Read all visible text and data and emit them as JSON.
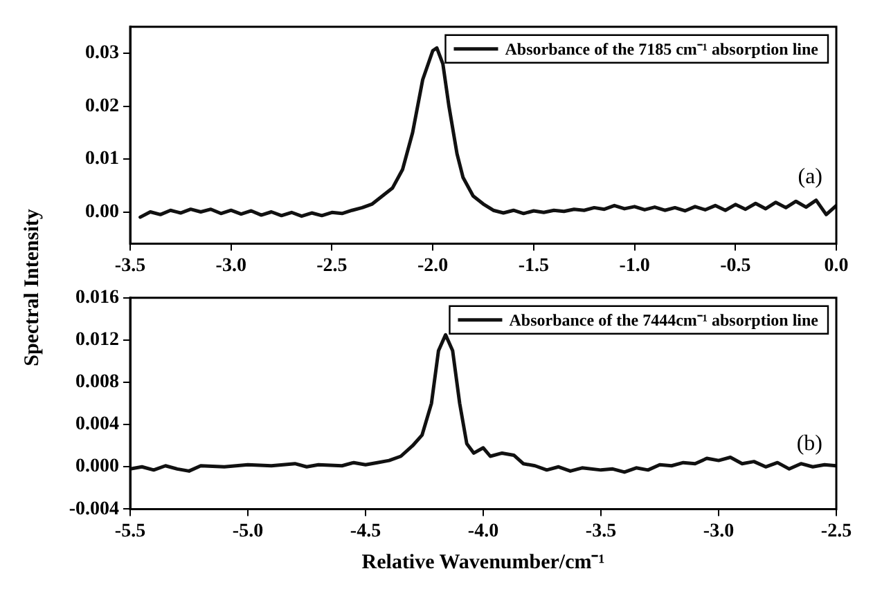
{
  "chart_data": [
    {
      "type": "line",
      "ylabel": "Spectral Intensity",
      "annotations": [
        "(a)"
      ],
      "legend": "top right",
      "xlim": [
        -3.5,
        0.0
      ],
      "xticks": [
        {
          "value": -3.5,
          "label": "-3.5"
        },
        {
          "value": -3.0,
          "label": "-3.0"
        },
        {
          "value": -2.5,
          "label": "-2.5"
        },
        {
          "value": -2.0,
          "label": "-2.0"
        },
        {
          "value": -1.5,
          "label": "-1.5"
        },
        {
          "value": -1.0,
          "label": "-1.0"
        },
        {
          "value": -0.5,
          "label": "-0.5"
        },
        {
          "value": 0.0,
          "label": "0.0"
        }
      ],
      "ylim": [
        -0.006,
        0.035
      ],
      "yticks": [
        {
          "value": 0,
          "label": "0.00"
        },
        {
          "value": 0.01,
          "label": "0.01"
        },
        {
          "value": 0.02,
          "label": "0.02"
        },
        {
          "value": 0.03,
          "label": "0.03"
        }
      ],
      "series": [
        {
          "name": "Absorbance of the 7185 cm⁻¹ absorption line",
          "color": "#111111",
          "x": [
            -3.45,
            -3.4,
            -3.35,
            -3.3,
            -3.25,
            -3.2,
            -3.15,
            -3.1,
            -3.05,
            -3.0,
            -2.95,
            -2.9,
            -2.85,
            -2.8,
            -2.75,
            -2.7,
            -2.65,
            -2.6,
            -2.55,
            -2.5,
            -2.45,
            -2.4,
            -2.35,
            -2.3,
            -2.25,
            -2.2,
            -2.15,
            -2.1,
            -2.05,
            -2.0,
            -1.98,
            -1.95,
            -1.92,
            -1.88,
            -1.85,
            -1.8,
            -1.75,
            -1.7,
            -1.65,
            -1.6,
            -1.55,
            -1.5,
            -1.45,
            -1.4,
            -1.35,
            -1.3,
            -1.25,
            -1.2,
            -1.15,
            -1.1,
            -1.05,
            -1.0,
            -0.95,
            -0.9,
            -0.85,
            -0.8,
            -0.75,
            -0.7,
            -0.65,
            -0.6,
            -0.55,
            -0.5,
            -0.45,
            -0.4,
            -0.35,
            -0.3,
            -0.25,
            -0.2,
            -0.15,
            -0.1,
            -0.05,
            0.0
          ],
          "values": [
            -0.001,
            0.0,
            -0.0005,
            0.0003,
            -0.0002,
            0.0005,
            0.0,
            0.0005,
            -0.0003,
            0.0003,
            -0.0004,
            0.0002,
            -0.0006,
            0.0,
            -0.0007,
            -0.0001,
            -0.0008,
            -0.0002,
            -0.0007,
            -0.0001,
            -0.0003,
            0.0003,
            0.0008,
            0.0015,
            0.003,
            0.0045,
            0.008,
            0.015,
            0.025,
            0.0305,
            0.031,
            0.028,
            0.02,
            0.011,
            0.0065,
            0.003,
            0.0015,
            0.0003,
            -0.0002,
            0.0003,
            -0.0003,
            0.0002,
            -0.0001,
            0.0003,
            0.0001,
            0.0005,
            0.0003,
            0.0008,
            0.0005,
            0.0012,
            0.0006,
            0.001,
            0.0004,
            0.0009,
            0.0003,
            0.0008,
            0.0002,
            0.001,
            0.0004,
            0.0012,
            0.0003,
            0.0014,
            0.0005,
            0.0016,
            0.0006,
            0.0018,
            0.0008,
            0.002,
            0.0009,
            0.0022,
            -0.0005,
            0.0012
          ]
        }
      ]
    },
    {
      "type": "line",
      "xlabel": "Relative Wavenumber/cm⁻¹",
      "annotations": [
        "(b)"
      ],
      "legend": "top right",
      "xlim": [
        -5.5,
        -2.5
      ],
      "xticks": [
        {
          "value": -5.5,
          "label": "-5.5"
        },
        {
          "value": -5.0,
          "label": "-5.0"
        },
        {
          "value": -4.5,
          "label": "-4.5"
        },
        {
          "value": -4.0,
          "label": "-4.0"
        },
        {
          "value": -3.5,
          "label": "-3.5"
        },
        {
          "value": -3.0,
          "label": "-3.0"
        },
        {
          "value": -2.5,
          "label": "-2.5"
        }
      ],
      "ylim": [
        -0.004,
        0.016
      ],
      "yticks": [
        {
          "value": -0.004,
          "label": "-0.004"
        },
        {
          "value": 0,
          "label": "0.000"
        },
        {
          "value": 0.004,
          "label": "0.004"
        },
        {
          "value": 0.008,
          "label": "0.008"
        },
        {
          "value": 0.012,
          "label": "0.012"
        },
        {
          "value": 0.016,
          "label": "0.016"
        }
      ],
      "series": [
        {
          "name": "Absorbance of the 7444cm⁻¹ absorption line",
          "color": "#111111",
          "x": [
            -5.5,
            -5.45,
            -5.4,
            -5.35,
            -5.3,
            -5.25,
            -5.2,
            -5.1,
            -5.0,
            -4.9,
            -4.8,
            -4.75,
            -4.7,
            -4.6,
            -4.55,
            -4.5,
            -4.45,
            -4.4,
            -4.35,
            -4.3,
            -4.26,
            -4.22,
            -4.19,
            -4.16,
            -4.13,
            -4.1,
            -4.07,
            -4.04,
            -4.0,
            -3.97,
            -3.92,
            -3.87,
            -3.83,
            -3.78,
            -3.73,
            -3.68,
            -3.63,
            -3.58,
            -3.5,
            -3.45,
            -3.4,
            -3.35,
            -3.3,
            -3.25,
            -3.2,
            -3.15,
            -3.1,
            -3.05,
            -3.0,
            -2.95,
            -2.9,
            -2.85,
            -2.8,
            -2.75,
            -2.7,
            -2.65,
            -2.6,
            -2.55,
            -2.5
          ],
          "values": [
            -0.0002,
            0.0,
            -0.0003,
            0.0001,
            -0.0002,
            -0.0004,
            0.0001,
            0.0,
            0.0002,
            0.0001,
            0.0003,
            0.0,
            0.0002,
            0.0001,
            0.0004,
            0.0002,
            0.0004,
            0.0006,
            0.001,
            0.002,
            0.003,
            0.006,
            0.011,
            0.0125,
            0.011,
            0.006,
            0.0022,
            0.0013,
            0.0018,
            0.001,
            0.0013,
            0.0011,
            0.0003,
            0.0001,
            -0.0003,
            0.0,
            -0.0004,
            -0.0001,
            -0.0003,
            -0.0002,
            -0.0005,
            -0.0001,
            -0.0003,
            0.0002,
            0.0001,
            0.0004,
            0.0003,
            0.0008,
            0.0006,
            0.0009,
            0.0003,
            0.0005,
            0.0,
            0.0004,
            -0.0002,
            0.0003,
            0.0,
            0.0002,
            0.0001
          ]
        }
      ]
    }
  ]
}
